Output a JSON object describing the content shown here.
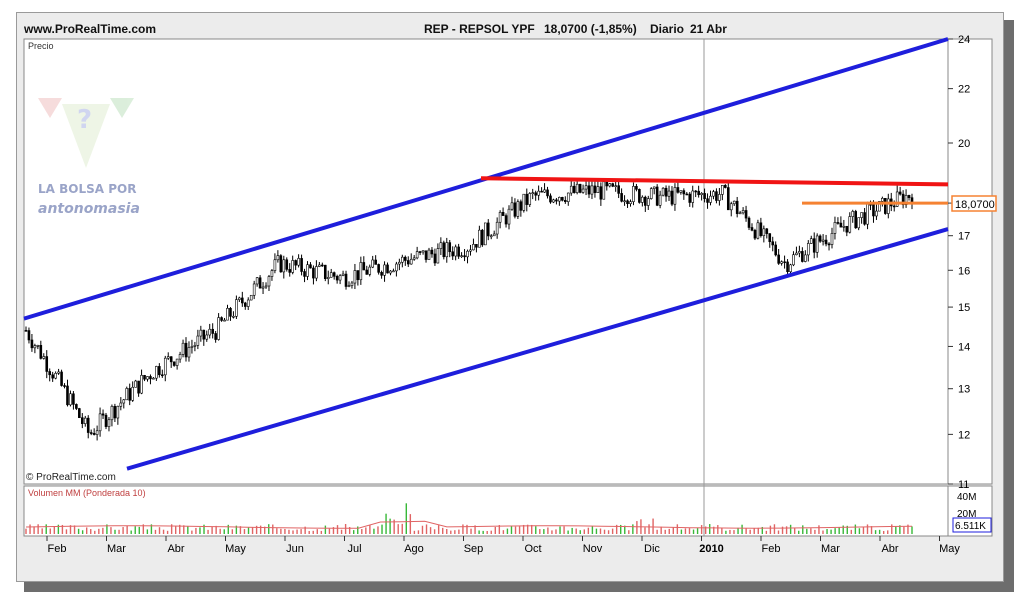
{
  "header": {
    "site": "www.ProRealTime.com",
    "symbol": "REP - REPSOL YPF",
    "quote": "18,0700 (-1,85%)",
    "period": "Diario",
    "date": "21 Abr"
  },
  "price_panel": {
    "label": "Precio",
    "copyright": "© ProRealTime.com",
    "last_price_label": "18,0700"
  },
  "volume_panel": {
    "label": "Volumen MM (Ponderada 10)",
    "last_volume_label": "6.511K"
  },
  "watermark": {
    "line1": "LA BOLSA POR",
    "line2": "antonomasia"
  },
  "colors": {
    "candle": "#000000",
    "channel": "#1e1edc",
    "resistance": "#f01414",
    "support": "#f58232",
    "volume": "#e06464",
    "volume_up": "#38b838",
    "background": "#ffffff",
    "frame": "#ececec"
  },
  "chart_data": {
    "type": "line",
    "title": "REP - REPSOL YPF",
    "xlabel": "",
    "ylabel": "Precio",
    "scale": "log",
    "ylim": [
      11,
      24
    ],
    "grid": false,
    "y_ticks": [
      11,
      12,
      13,
      14,
      15,
      16,
      17,
      18,
      20,
      22,
      24
    ],
    "x_ticks": [
      "Feb",
      "Mar",
      "Abr",
      "May",
      "Jun",
      "Jul",
      "Ago",
      "Sep",
      "Oct",
      "Nov",
      "Dic",
      "2010",
      "Feb",
      "Mar",
      "Abr",
      "May"
    ],
    "x": [
      "Feb",
      "Mar",
      "Abr",
      "May",
      "Jun",
      "Jul",
      "Ago",
      "Sep",
      "Oct",
      "Nov",
      "Dic",
      "2010",
      "Feb",
      "Mar",
      "Abr"
    ],
    "series": [
      {
        "values": [
          14.4,
          12.0,
          13.4,
          14.4,
          16.2,
          15.8,
          16.3,
          16.7,
          18.2,
          18.4,
          18.2,
          18.3,
          16.2,
          17.4,
          18.3
        ]
      }
    ],
    "annotations": [
      {
        "label": "upper channel",
        "from": [
          "Ene",
          14.7
        ],
        "to": [
          "May",
          24.0
        ]
      },
      {
        "label": "lower channel",
        "from": [
          "Mar",
          11.3
        ],
        "to": [
          "May",
          17.2
        ]
      },
      {
        "label": "resistance",
        "from": [
          "Sep",
          18.8
        ],
        "to": [
          "May",
          18.6
        ]
      },
      {
        "label": "support",
        "from": [
          "Mar",
          18.0
        ],
        "to": [
          "May",
          18.0
        ]
      }
    ],
    "last_value": 18.07,
    "change_pct": -1.85,
    "volume": {
      "label": "Volumen MM (Ponderada 10)",
      "y_ticks": [
        "40M",
        "20M"
      ],
      "last": "6.511K"
    }
  }
}
